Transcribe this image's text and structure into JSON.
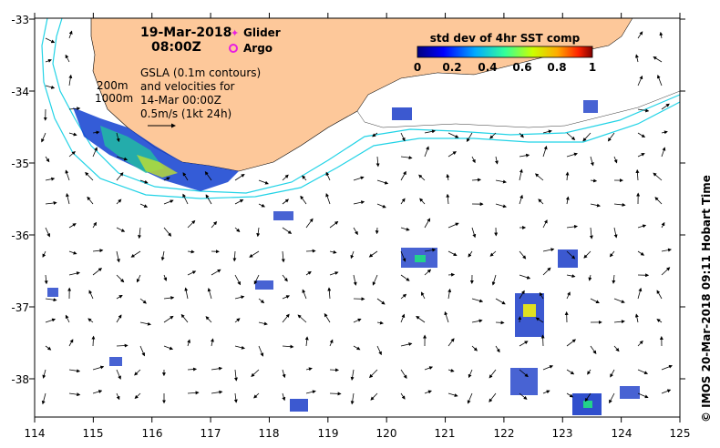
{
  "map": {
    "date": "19-Mar-2018",
    "time": "08:00Z",
    "legend_glider": "Glider",
    "legend_argo": "Argo",
    "colorbar_title": "std dev of 4hr SST comp",
    "colorbar_ticks": [
      "0",
      "0.2",
      "0.4",
      "0.6",
      "0.8",
      "1"
    ],
    "contour_label_200": "200m",
    "contour_label_1000": "1000m",
    "gsla_note": [
      "GSLA (0.1m contours)",
      "and velocities for",
      "14-Mar 00:00Z",
      "0.5m/s (1kt 24h)"
    ],
    "credit": "© IMOS 20-Mar-2018 09:11 Hobart Time",
    "lon_ticks": [
      "114",
      "115",
      "116",
      "117",
      "118",
      "119",
      "120",
      "121",
      "122",
      "123",
      "124",
      "125"
    ],
    "lat_ticks": [
      "-33",
      "-34",
      "-35",
      "-36",
      "-37",
      "-38"
    ],
    "colors": {
      "land": "#fdc89a",
      "isobath": "#22d3e6",
      "glider": "#e81fe0",
      "argo": "#e81fe0"
    }
  }
}
